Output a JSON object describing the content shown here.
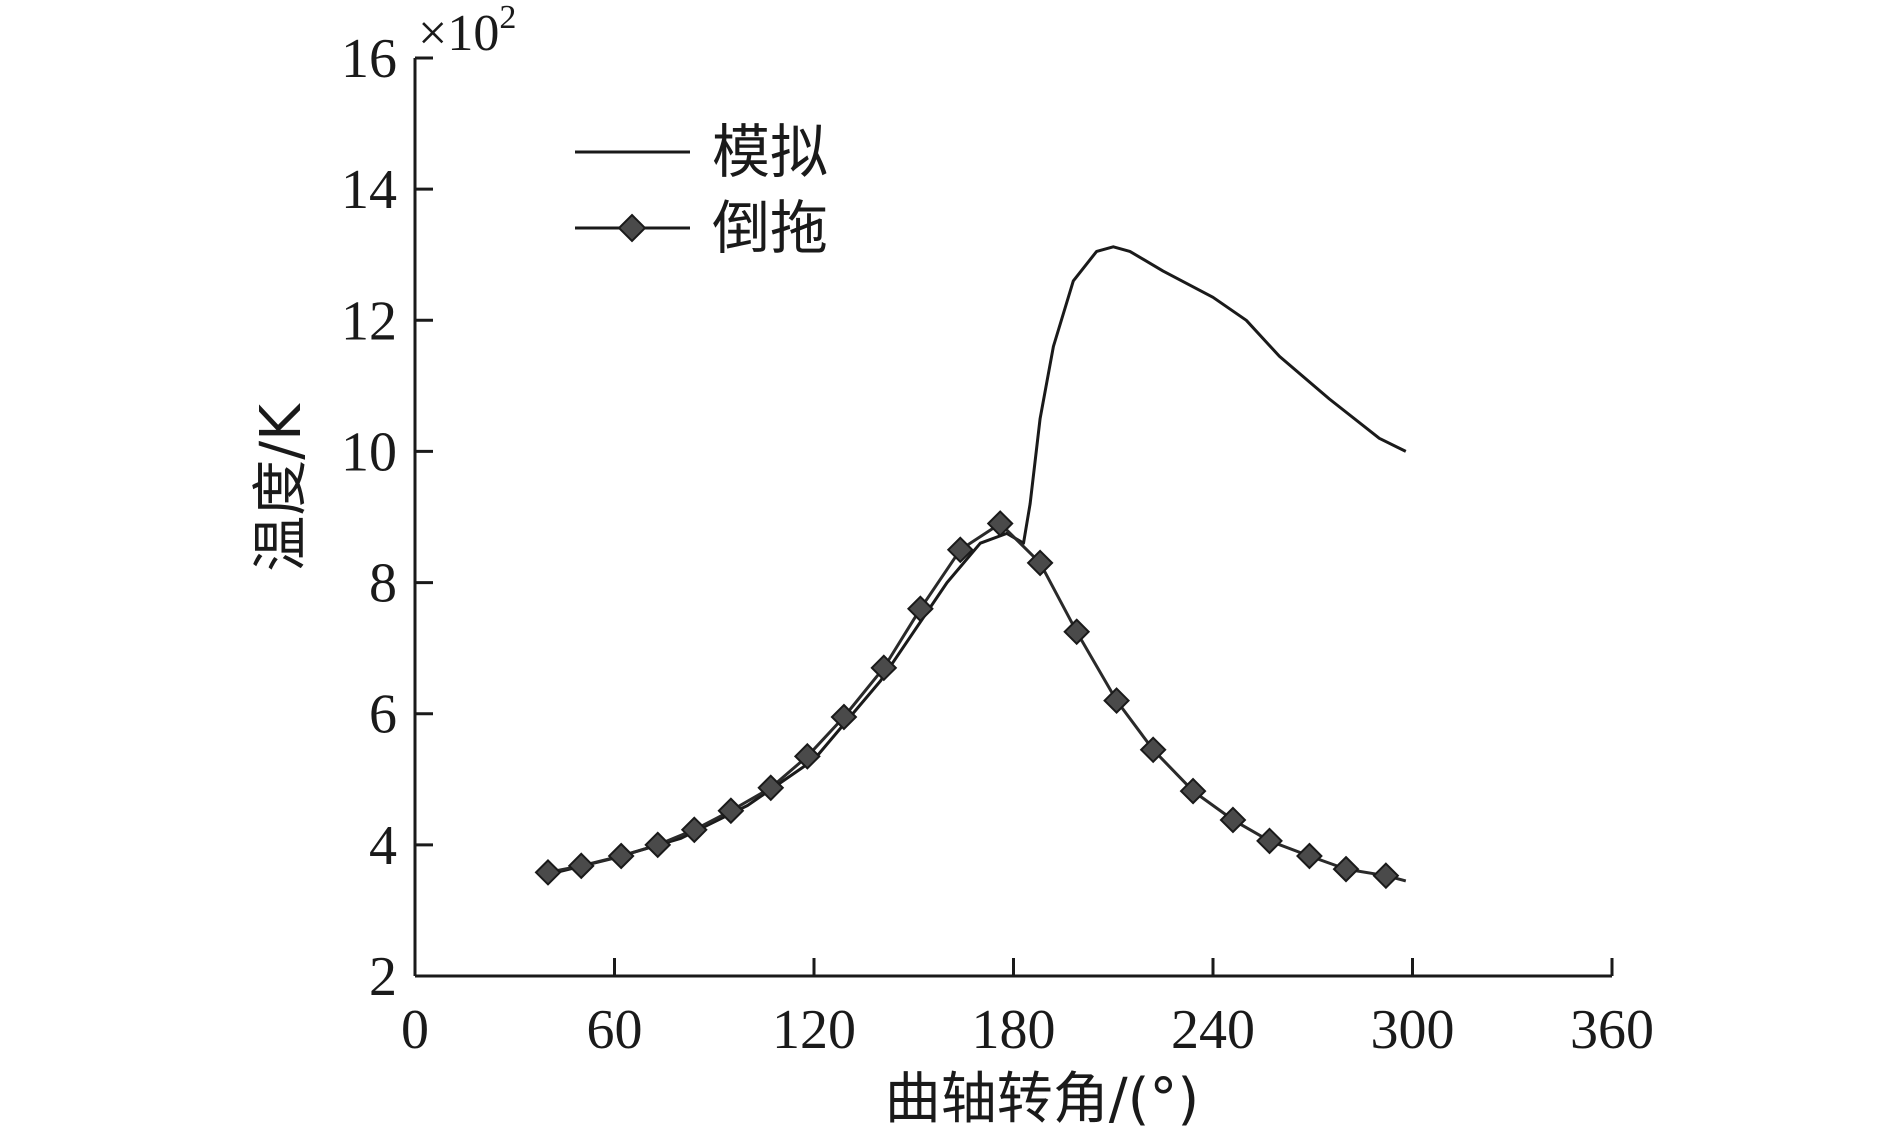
{
  "chart_data": {
    "type": "line",
    "xlabel": "曲轴转角/(°)",
    "ylabel": "温度/K",
    "y_multiplier_prefix": "×10",
    "y_multiplier_exp": "2",
    "xlim": [
      0,
      360
    ],
    "ylim": [
      2,
      16
    ],
    "xticks": [
      0,
      60,
      120,
      180,
      240,
      300,
      360
    ],
    "yticks": [
      2,
      4,
      6,
      8,
      10,
      12,
      14,
      16
    ],
    "grid": false,
    "legend_position": "top-left",
    "series": [
      {
        "name": "模拟",
        "marker": "none",
        "color": "#1a1a1a",
        "x": [
          40,
          60,
          80,
          100,
          120,
          140,
          160,
          170,
          178,
          183,
          185,
          188,
          192,
          198,
          205,
          210,
          215,
          225,
          240,
          250,
          260,
          275,
          290,
          298
        ],
        "y": [
          3.55,
          3.8,
          4.1,
          4.6,
          5.3,
          6.5,
          8.0,
          8.6,
          8.75,
          8.6,
          9.2,
          10.5,
          11.6,
          12.6,
          13.05,
          13.12,
          13.05,
          12.75,
          12.35,
          12.0,
          11.45,
          10.8,
          10.2,
          10.0
        ]
      },
      {
        "name": "倒拖",
        "marker": "diamond",
        "color": "#4a4a4a",
        "x": [
          40,
          50,
          62,
          73,
          84,
          95,
          107,
          118,
          129,
          141,
          152,
          164,
          176,
          188,
          199,
          211,
          222,
          234,
          246,
          257,
          269,
          280,
          292,
          298
        ],
        "y": [
          3.58,
          3.68,
          3.83,
          4.0,
          4.23,
          4.52,
          4.87,
          5.35,
          5.95,
          6.7,
          7.6,
          8.5,
          8.9,
          8.3,
          7.25,
          6.2,
          5.45,
          4.82,
          4.38,
          4.06,
          3.83,
          3.63,
          3.53,
          3.45
        ]
      }
    ]
  }
}
